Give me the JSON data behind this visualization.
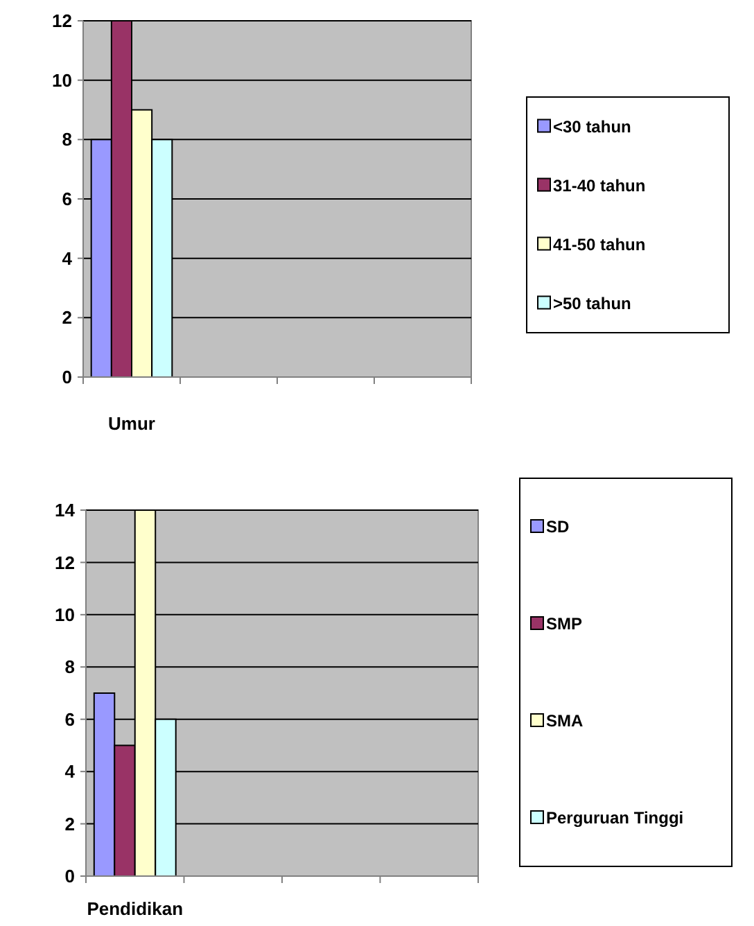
{
  "chart_data": [
    {
      "type": "bar",
      "xlabel": "Umur",
      "categories": [
        null,
        null,
        null,
        null
      ],
      "ylim": [
        0,
        12
      ],
      "yticks": [
        0,
        2,
        4,
        6,
        8,
        10,
        12
      ],
      "grid": "y",
      "legend": "right",
      "series": [
        {
          "name": "<30 tahun",
          "color": "#9999ff",
          "values": [
            8,
            null,
            null,
            null
          ]
        },
        {
          "name": "31-40 tahun",
          "color": "#993366",
          "values": [
            12,
            null,
            null,
            null
          ]
        },
        {
          "name": "41-50 tahun",
          "color": "#ffffcc",
          "values": [
            9,
            null,
            null,
            null
          ]
        },
        {
          "name": ">50 tahun",
          "color": "#ccffff",
          "values": [
            8,
            null,
            null,
            null
          ]
        }
      ]
    },
    {
      "type": "bar",
      "xlabel": "Pendidikan",
      "categories": [
        null,
        null,
        null,
        null
      ],
      "ylim": [
        0,
        14
      ],
      "yticks": [
        0,
        2,
        4,
        6,
        8,
        10,
        12,
        14
      ],
      "grid": "y",
      "legend": "right",
      "series": [
        {
          "name": "SD",
          "color": "#9999ff",
          "values": [
            7,
            null,
            null,
            null
          ]
        },
        {
          "name": "SMP",
          "color": "#993366",
          "values": [
            5,
            null,
            null,
            null
          ]
        },
        {
          "name": "SMA",
          "color": "#ffffcc",
          "values": [
            14,
            null,
            null,
            null
          ]
        },
        {
          "name": "Perguruan Tinggi",
          "color": "#ccffff",
          "values": [
            6,
            null,
            null,
            null
          ]
        }
      ]
    }
  ]
}
